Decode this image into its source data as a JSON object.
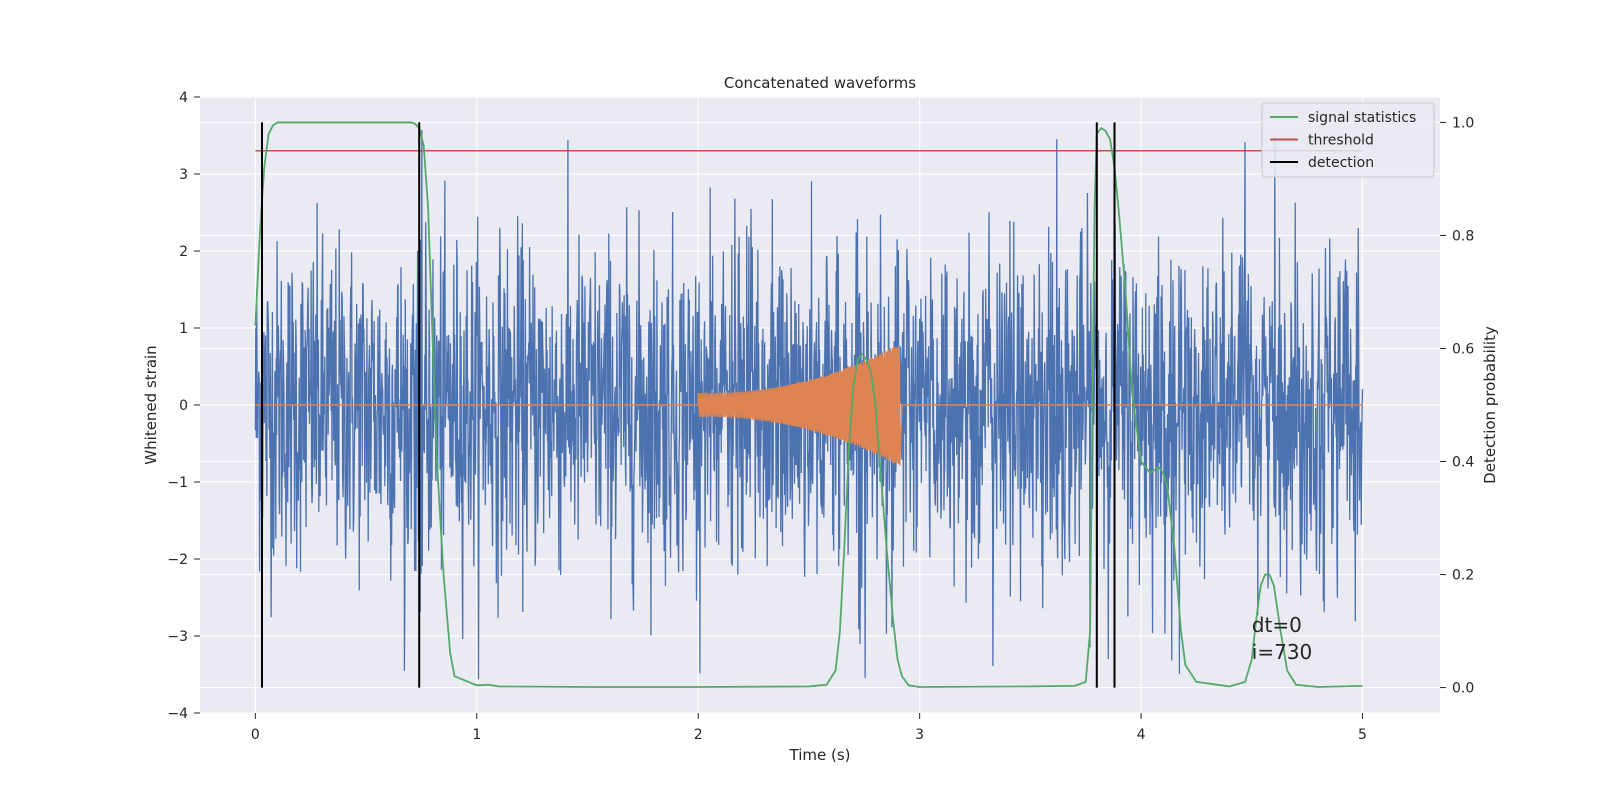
{
  "chart_data": {
    "type": "line",
    "title": "Concatenated waveforms",
    "xlabel": "Time (s)",
    "ylabel": "Whitened strain",
    "ylabel_right": "Detection probability",
    "xlim": [
      -0.25,
      5.35
    ],
    "ylim": [
      -4,
      4
    ],
    "ylim_right": [
      -0.045,
      1.045
    ],
    "x_ticks": [
      0,
      1,
      2,
      3,
      4,
      5
    ],
    "x_tick_labels": [
      "0",
      "1",
      "2",
      "3",
      "4",
      "5"
    ],
    "y_ticks": [
      4,
      3,
      2,
      1,
      0,
      -1,
      -2,
      -3,
      -4
    ],
    "y_tick_labels": [
      "4",
      "3",
      "2",
      "1",
      "0",
      "−1",
      "−2",
      "−3",
      "−4"
    ],
    "y_ticks_right": [
      1.0,
      0.8,
      0.6,
      0.4,
      0.2,
      0.0
    ],
    "y_tick_labels_right": [
      "1.0",
      "0.8",
      "0.6",
      "0.4",
      "0.2",
      "0.0"
    ],
    "grid": true,
    "legend": {
      "position": "top-right",
      "entries": [
        {
          "label": "signal statistics",
          "color": "#55a868"
        },
        {
          "label": "threshold",
          "color": "#c44e52"
        },
        {
          "label": "detection",
          "color": "#000000"
        }
      ]
    },
    "series": [
      {
        "name": "whitened strain",
        "color": "#4c72b0",
        "axis": "left",
        "x_range": [
          0,
          5
        ],
        "envelope_typical": 1.5,
        "peak_max": 3.6,
        "peak_min": -3.65
      },
      {
        "name": "injected waveform",
        "color": "#dd8452",
        "axis": "left",
        "x_range": [
          0,
          5
        ],
        "chirp_start": 2.0,
        "chirp_end": 2.91,
        "amplitude_start": 0.15,
        "amplitude_end": 0.8
      },
      {
        "name": "signal statistics",
        "color": "#55a868",
        "axis": "right",
        "x": [
          0,
          0.02,
          0.04,
          0.06,
          0.08,
          0.1,
          0.2,
          0.4,
          0.6,
          0.7,
          0.72,
          0.74,
          0.76,
          0.78,
          0.8,
          0.82,
          0.85,
          0.88,
          0.9,
          1.0,
          1.05,
          1.1,
          1.5,
          2.0,
          2.5,
          2.58,
          2.62,
          2.64,
          2.66,
          2.68,
          2.7,
          2.72,
          2.74,
          2.76,
          2.78,
          2.8,
          2.82,
          2.85,
          2.88,
          2.9,
          2.92,
          2.95,
          3.0,
          3.5,
          3.7,
          3.75,
          3.77,
          3.78,
          3.79,
          3.8,
          3.82,
          3.84,
          3.86,
          3.88,
          3.9,
          3.93,
          3.96,
          4.0,
          4.04,
          4.06,
          4.08,
          4.1,
          4.12,
          4.15,
          4.18,
          4.2,
          4.25,
          4.4,
          4.47,
          4.5,
          4.52,
          4.54,
          4.56,
          4.58,
          4.6,
          4.63,
          4.66,
          4.7,
          4.8,
          5.0
        ],
        "y": [
          0.64,
          0.8,
          0.92,
          0.98,
          0.995,
          1.0,
          1.0,
          1.0,
          1.0,
          1.0,
          0.998,
          0.99,
          0.96,
          0.85,
          0.62,
          0.4,
          0.2,
          0.06,
          0.02,
          0.004,
          0.005,
          0.002,
          0.001,
          0.001,
          0.002,
          0.005,
          0.03,
          0.1,
          0.25,
          0.42,
          0.53,
          0.58,
          0.59,
          0.58,
          0.56,
          0.5,
          0.4,
          0.25,
          0.12,
          0.05,
          0.02,
          0.004,
          0.001,
          0.002,
          0.003,
          0.01,
          0.1,
          0.5,
          0.85,
          0.98,
          0.99,
          0.985,
          0.97,
          0.92,
          0.84,
          0.7,
          0.52,
          0.4,
          0.38,
          0.385,
          0.39,
          0.38,
          0.35,
          0.25,
          0.1,
          0.04,
          0.01,
          0.002,
          0.01,
          0.05,
          0.12,
          0.18,
          0.2,
          0.2,
          0.18,
          0.1,
          0.03,
          0.005,
          0.001,
          0.003
        ]
      },
      {
        "name": "threshold",
        "color": "#c44e52",
        "axis": "right",
        "x": [
          0,
          5
        ],
        "y": [
          0.95,
          0.95
        ]
      },
      {
        "name": "detection",
        "color": "#000000",
        "axis": "right",
        "vlines": [
          0.03,
          0.74,
          3.8,
          3.88
        ],
        "ymin": 0.0,
        "ymax": 1.0
      }
    ],
    "annotations": [
      {
        "text": "dt=0",
        "x": 4.5,
        "y": -2.95
      },
      {
        "text": "i=730",
        "x": 4.5,
        "y": -3.3
      }
    ]
  }
}
